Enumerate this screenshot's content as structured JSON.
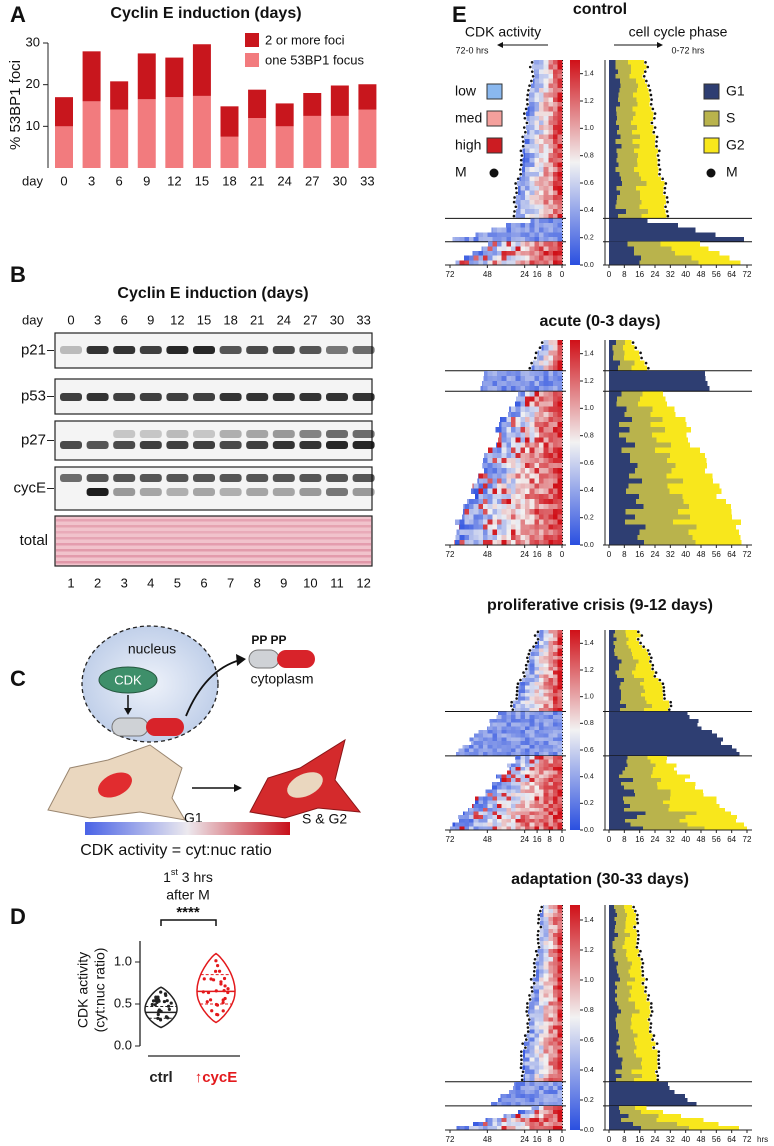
{
  "chart_data": [
    {
      "type": "bar",
      "stacked": true,
      "panel": "A",
      "title": "Cyclin E induction (days)",
      "ylabel": "% 53BP1 foci",
      "xlabel": "day",
      "categories": [
        "0",
        "3",
        "6",
        "9",
        "12",
        "15",
        "18",
        "21",
        "24",
        "27",
        "30",
        "33"
      ],
      "series": [
        {
          "name": "one 53BP1 focus",
          "color": "#f27b7e",
          "values": [
            10,
            16,
            14,
            16.5,
            17,
            17.3,
            7.5,
            12,
            10,
            12.5,
            12.5,
            14
          ]
        },
        {
          "name": "2 or more foci",
          "color": "#c8161d",
          "values": [
            7,
            12,
            6.8,
            11,
            9.5,
            12.4,
            7.3,
            6.8,
            5.5,
            5.5,
            7.3,
            6.1
          ]
        }
      ],
      "ylim": [
        0,
        30
      ],
      "yticks": [
        10,
        20,
        30
      ],
      "legend": "upper right"
    },
    {
      "type": "violin",
      "panel": "D",
      "title": [
        "1",
        "st",
        " 3 hrs",
        "after M"
      ],
      "significance": "****",
      "ylabel": [
        "CDK activity",
        "(cyt:nuc ratio)"
      ],
      "categories": [
        "ctrl",
        "↑cycE"
      ],
      "colors": [
        "#222222",
        "#e3191c"
      ],
      "ranges": [
        [
          0.22,
          0.7
        ],
        [
          0.28,
          1.1
        ]
      ],
      "quartiles": [
        [
          0.33,
          0.47
        ],
        [
          0.5,
          0.85
        ]
      ],
      "medians": [
        0.4,
        0.65
      ],
      "ylim": [
        0,
        1.25
      ],
      "yticks": [
        {
          "value": 0,
          "label": "0.0"
        },
        0.5,
        {
          "value": 1,
          "label": "1.0"
        }
      ]
    }
  ],
  "panels": {
    "B": {
      "panel": "B",
      "title": "Cyclin E induction (days)",
      "day_label": "day",
      "days": [
        "0",
        "3",
        "6",
        "9",
        "12",
        "15",
        "18",
        "21",
        "24",
        "27",
        "30",
        "33"
      ],
      "rows": [
        "p21",
        "p53",
        "p27",
        "cycE",
        "total"
      ],
      "lanes": [
        "1",
        "2",
        "3",
        "4",
        "5",
        "6",
        "7",
        "8",
        "9",
        "10",
        "11",
        "12"
      ]
    },
    "C": {
      "panel": "C",
      "nucleus": "nucleus",
      "cdk": "CDK",
      "phospho": "PP PP",
      "cytoplasm": "cytoplasm",
      "g1": "G1",
      "s_g2": "S & G2",
      "caption": "CDK activity = cyt:nuc ratio"
    },
    "E": {
      "panel": "E",
      "titles": [
        "control",
        "acute (0-3 days)",
        "proliferative crisis (9-12 days)",
        "adaptation (30-33 days)"
      ],
      "cdk_header": "CDK activity",
      "phase_header": "cell cycle phase",
      "cdk_range": "72-0 hrs",
      "phase_range": "0-72 hrs",
      "cdk_legend": [
        {
          "name": "low",
          "color": "#8ab8ef"
        },
        {
          "name": "med",
          "color": "#f4a09c"
        },
        {
          "name": "high",
          "color": "#cc1c22"
        },
        {
          "name": "M"
        }
      ],
      "phase_legend": [
        {
          "name": "G1",
          "color": "#2e3e72"
        },
        {
          "name": "S",
          "color": "#b9b34c"
        },
        {
          "name": "G2",
          "color": "#f8e71c"
        },
        {
          "name": "M"
        }
      ],
      "colorbar": {
        "ylim": [
          0,
          1.5
        ],
        "ticks": [
          {
            "value": 0,
            "label": "0.0"
          },
          0.2,
          0.4,
          0.6,
          0.8,
          {
            "value": 1,
            "label": "1.0"
          },
          1.2,
          1.4
        ],
        "colors": [
          "#2a4fe0",
          "#f2f2f2",
          "#d01018"
        ]
      },
      "cdk_xlim": [
        72,
        0
      ],
      "cdk_xticks": [
        72,
        48,
        24,
        16,
        8,
        0
      ],
      "phase_xlim": [
        0,
        72
      ],
      "phase_xticks": [
        0,
        8,
        16,
        24,
        32,
        40,
        48,
        56,
        64,
        72
      ],
      "xunit": "hrs"
    }
  }
}
